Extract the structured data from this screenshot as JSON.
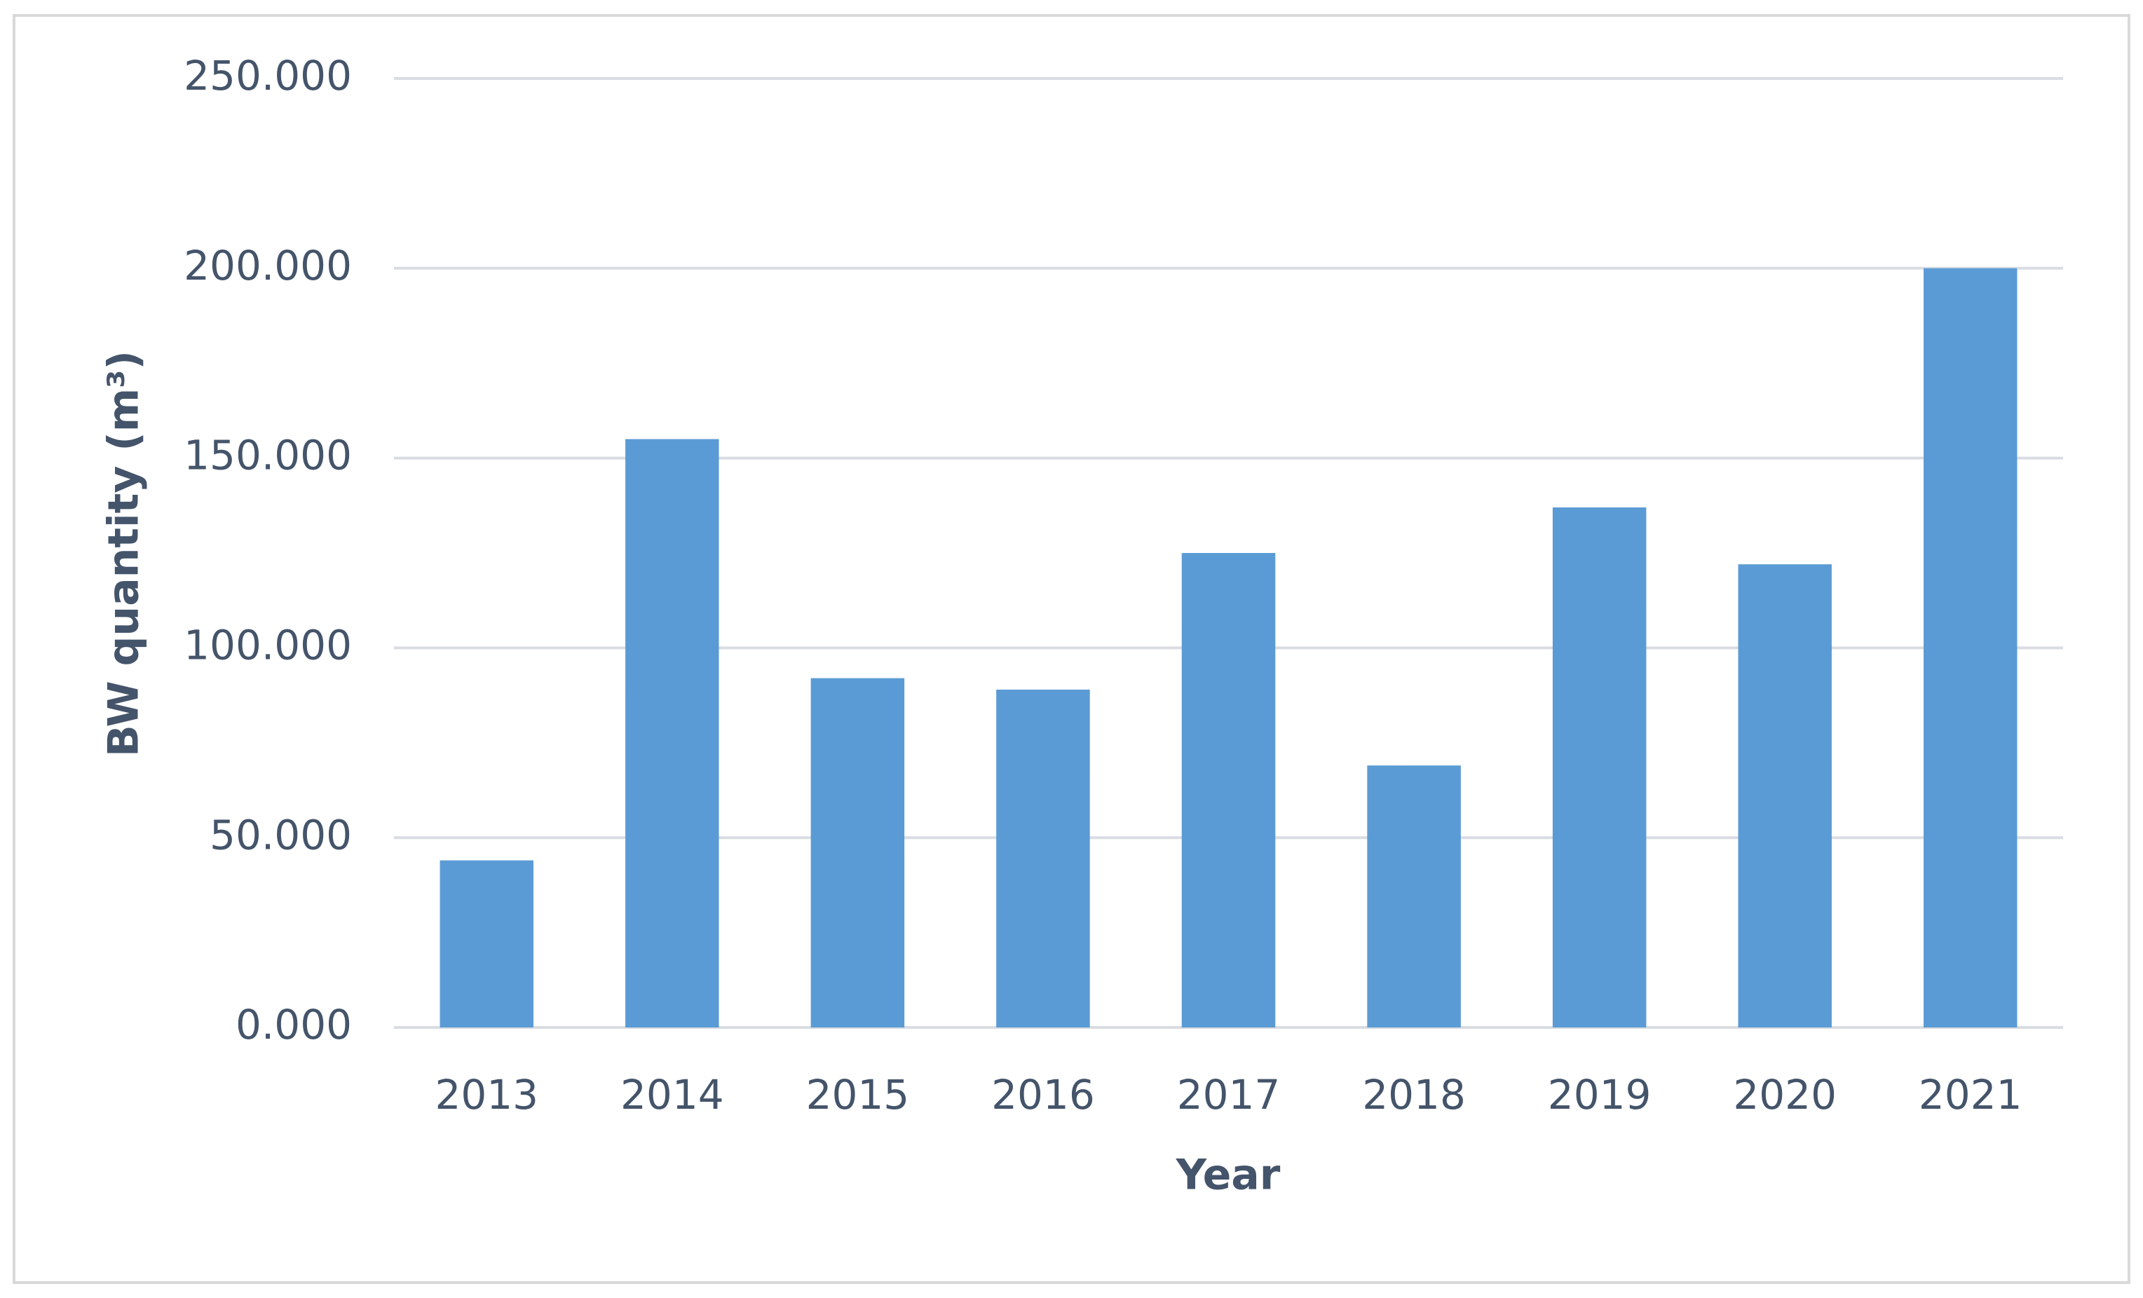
{
  "chart_data": {
    "type": "bar",
    "categories": [
      "2013",
      "2014",
      "2015",
      "2016",
      "2017",
      "2018",
      "2019",
      "2020",
      "2021"
    ],
    "values": [
      44,
      155,
      92,
      89,
      125,
      69,
      137,
      122,
      200
    ],
    "color": "#5b9bd5",
    "xlabel": "Year",
    "ylabel": "BW quantity (m³)",
    "ylim": [
      0,
      250
    ],
    "yticks": [
      {
        "value": 0,
        "label": "0.000"
      },
      {
        "value": 50,
        "label": "50.000"
      },
      {
        "value": 100,
        "label": "100.000"
      },
      {
        "value": 150,
        "label": "150.000"
      },
      {
        "value": 200,
        "label": "200.000"
      },
      {
        "value": 250,
        "label": "250.000"
      }
    ],
    "grid": true
  }
}
